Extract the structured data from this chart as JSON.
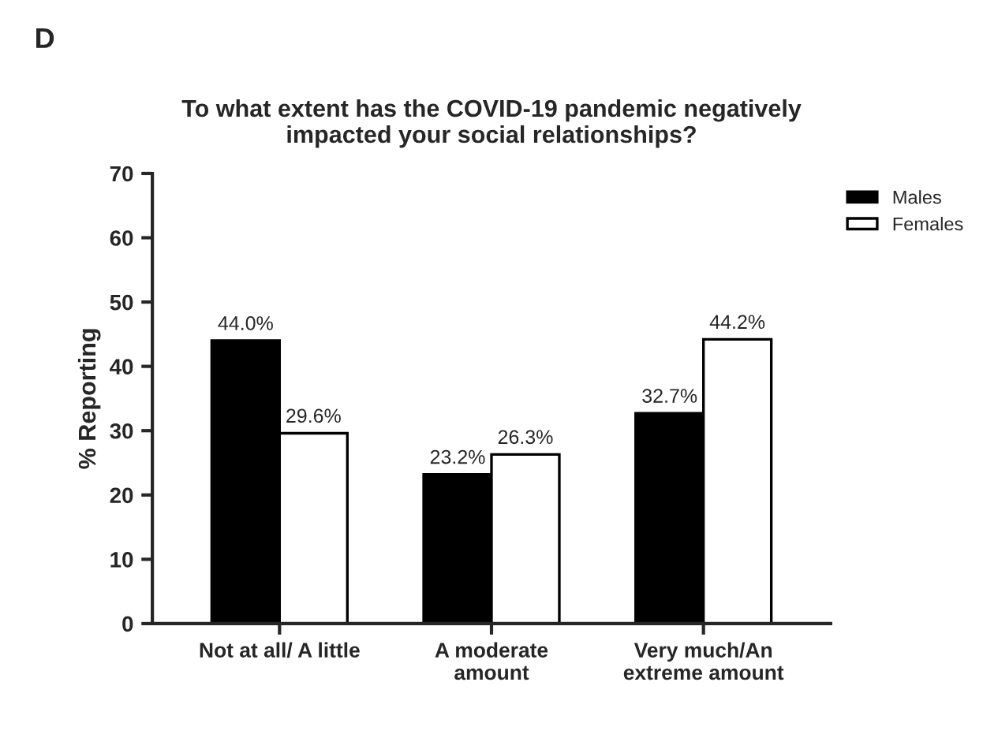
{
  "chart_data": {
    "type": "bar",
    "title": "To what extent has the COVID-19 pandemic negatively\nimpacted your social relationships?",
    "ylabel": "% Reporting",
    "annotations": [
      "D"
    ],
    "categories": [
      "Not at all/ A little",
      "A moderate\namount",
      "Very much/An\nextreme amount"
    ],
    "series": [
      {
        "name": "Males",
        "color": "#000000",
        "values": [
          44.0,
          23.2,
          32.7
        ],
        "value_labels": [
          "44.0%",
          "23.2%",
          "32.7%"
        ]
      },
      {
        "name": "Females",
        "color": "#ffffff",
        "values": [
          29.6,
          26.3,
          44.2
        ],
        "value_labels": [
          "29.6%",
          "26.3%",
          "44.2%"
        ]
      }
    ],
    "ylim": [
      0,
      70
    ],
    "yticks": [
      0,
      10,
      20,
      30,
      40,
      50,
      60,
      70
    ],
    "grid": false,
    "legend": "top right"
  }
}
